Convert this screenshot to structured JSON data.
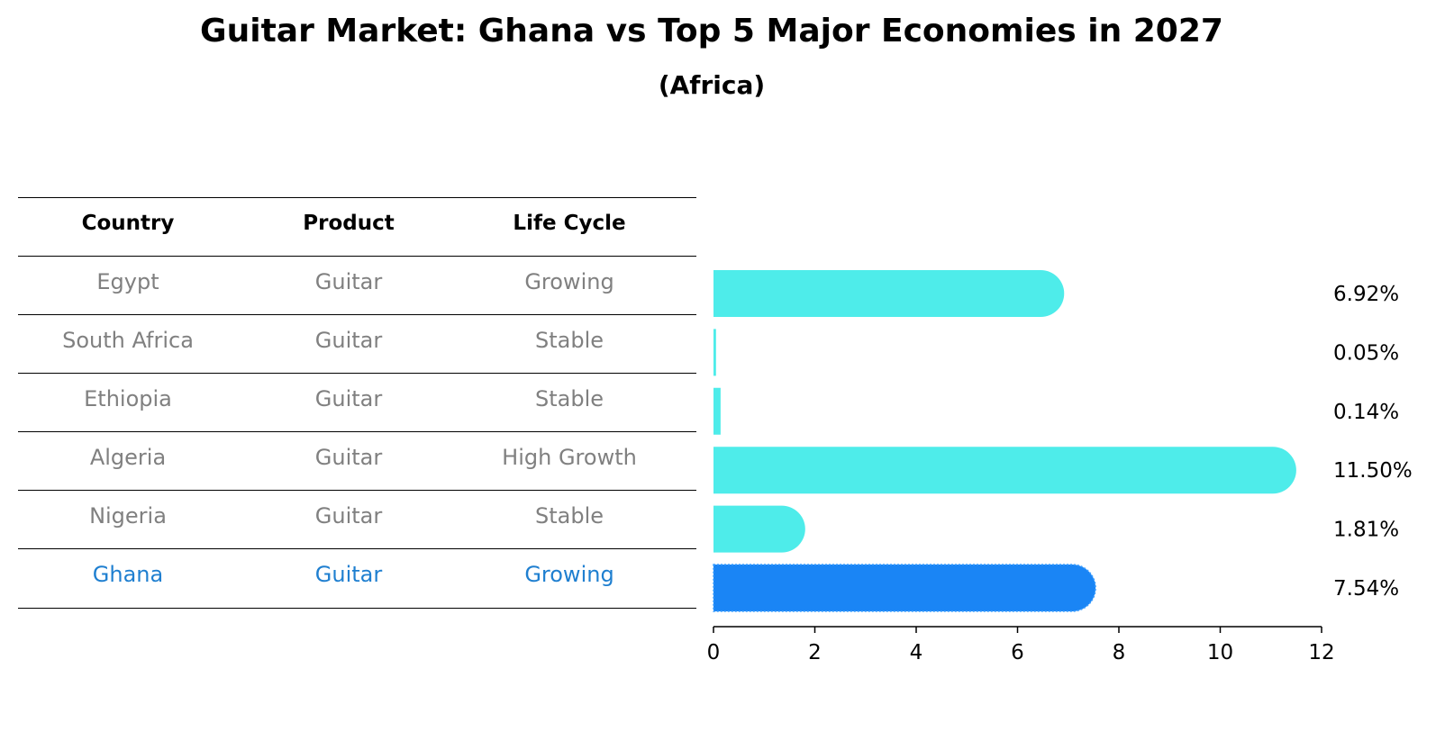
{
  "header": {
    "title": "Guitar Market: Ghana vs Top 5 Major Economies in 2027",
    "subtitle": "(Africa)"
  },
  "table": {
    "columns": [
      "Country",
      "Product",
      "Life Cycle"
    ],
    "rows": [
      {
        "country": "Egypt",
        "product": "Guitar",
        "life_cycle": "Growing"
      },
      {
        "country": "South Africa",
        "product": "Guitar",
        "life_cycle": "Stable"
      },
      {
        "country": "Ethiopia",
        "product": "Guitar",
        "life_cycle": "Stable"
      },
      {
        "country": "Algeria",
        "product": "Guitar",
        "life_cycle": "High Growth"
      },
      {
        "country": "Nigeria",
        "product": "Guitar",
        "life_cycle": "Stable"
      },
      {
        "country": "Ghana",
        "product": "Guitar",
        "life_cycle": "Growing"
      }
    ],
    "highlight_row": "Ghana"
  },
  "colors": {
    "bar": "#4eecea",
    "highlight_bar": "#1a85f5",
    "muted_text": "#808080",
    "highlight_text": "#1f7fd0"
  },
  "chart_data": {
    "type": "bar",
    "orientation": "horizontal",
    "categories": [
      "Egypt",
      "South Africa",
      "Ethiopia",
      "Algeria",
      "Nigeria",
      "Ghana"
    ],
    "values": [
      6.92,
      0.05,
      0.14,
      11.5,
      1.81,
      7.54
    ],
    "value_labels": [
      "6.92%",
      "0.05%",
      "0.14%",
      "11.50%",
      "1.81%",
      "7.54%"
    ],
    "xlim": [
      0,
      12
    ],
    "xticks": [
      0,
      2,
      4,
      6,
      8,
      10,
      12
    ],
    "highlight": "Ghana",
    "grid": false,
    "xlabel": "",
    "ylabel": ""
  }
}
